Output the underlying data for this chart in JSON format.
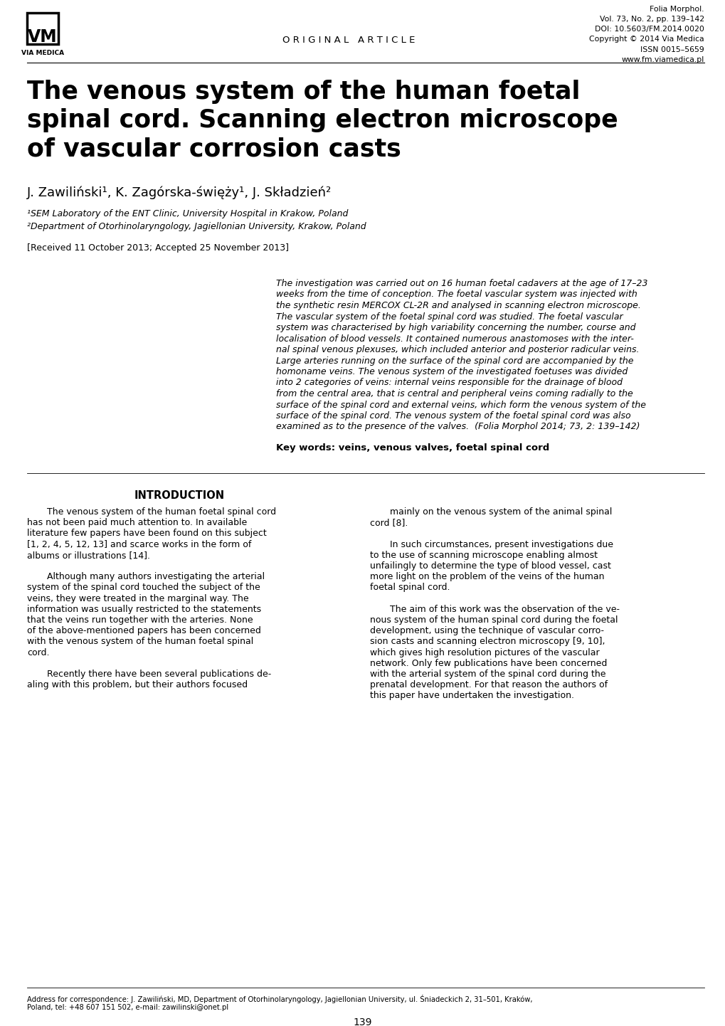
{
  "background_color": "#ffffff",
  "journal_info_lines": [
    "Folia Morphol.",
    "Vol. 73, No. 2, pp. 139–142",
    "DOI: 10.5603/FM.2014.0020",
    "Copyright © 2014 Via Medica",
    "ISSN 0015–5659",
    "www.fm.viamedica.pl"
  ],
  "header_center": "O R I G I N A L   A R T I C L E",
  "title_lines": [
    "The venous system of the human foetal",
    "spinal cord. Scanning electron microscope",
    "of vascular corrosion casts"
  ],
  "authors": "J. Zawiliński¹, K. Zagórska-święży¹, J. Składzień²",
  "affiliation1": "¹SEM Laboratory of the ENT Clinic, University Hospital in Krakow, Poland",
  "affiliation2": "²Department of Otorhinolaryngology, Jagiellonian University, Krakow, Poland",
  "received": "[Received 11 October 2013; Accepted 25 November 2013]",
  "abstract_lines": [
    "The investigation was carried out on 16 human foetal cadavers at the age of 17–23",
    "weeks from the time of conception. The foetal vascular system was injected with",
    "the synthetic resin MERCOX CL-2R and analysed in scanning electron microscope.",
    "The vascular system of the foetal spinal cord was studied. The foetal vascular",
    "system was characterised by high variability concerning the number, course and",
    "localisation of blood vessels. It contained numerous anastomoses with the inter-",
    "nal spinal venous plexuses, which included anterior and posterior radicular veins.",
    "Large arteries running on the surface of the spinal cord are accompanied by the",
    "homoname veins. The venous system of the investigated foetuses was divided",
    "into 2 categories of veins: internal veins responsible for the drainage of blood",
    "from the central area, that is central and peripheral veins coming radially to the",
    "surface of the spinal cord and external veins, which form the venous system of the",
    "surface of the spinal cord. The venous system of the foetal spinal cord was also",
    "examined as to the presence of the valves.  (Folia Morphol 2014; 73, 2: 139–142)"
  ],
  "keywords": "Key words: veins, venous valves, foetal spinal cord",
  "intro_heading": "INTRODUCTION",
  "intro_left_lines": [
    "The venous system of the human foetal spinal cord",
    "has not been paid much attention to. In available",
    "literature few papers have been found on this subject",
    "[1, 2, 4, 5, 12, 13] and scarce works in the form of",
    "albums or illustrations [14].",
    "",
    "Although many authors investigating the arterial",
    "system of the spinal cord touched the subject of the",
    "veins, they were treated in the marginal way. The",
    "information was usually restricted to the statements",
    "that the veins run together with the arteries. None",
    "of the above-mentioned papers has been concerned",
    "with the venous system of the human foetal spinal",
    "cord.",
    "",
    "Recently there have been several publications de-",
    "aling with this problem, but their authors focused"
  ],
  "intro_right_lines": [
    "mainly on the venous system of the animal spinal",
    "cord [8].",
    "",
    "In such circumstances, present investigations due",
    "to the use of scanning microscope enabling almost",
    "unfailingly to determine the type of blood vessel, cast",
    "more light on the problem of the veins of the human",
    "foetal spinal cord.",
    "",
    "The aim of this work was the observation of the ve-",
    "nous system of the human spinal cord during the foetal",
    "development, using the technique of vascular corro-",
    "sion casts and scanning electron microscopy [9, 10],",
    "which gives high resolution pictures of the vascular",
    "network. Only few publications have been concerned",
    "with the arterial system of the spinal cord during the",
    "prenatal development. For that reason the authors of",
    "this paper have undertaken the investigation."
  ],
  "footer_lines": [
    "Address for correspondence: J. Zawiliński, MD, Department of Otorhinolaryngology, Jagiellonian University, ul. Śniadeckich 2, 31–501, Kraków,",
    "Poland, tel: +48 607 151 502, e-mail: zawilinski@onet.pl"
  ],
  "page_number": "139"
}
